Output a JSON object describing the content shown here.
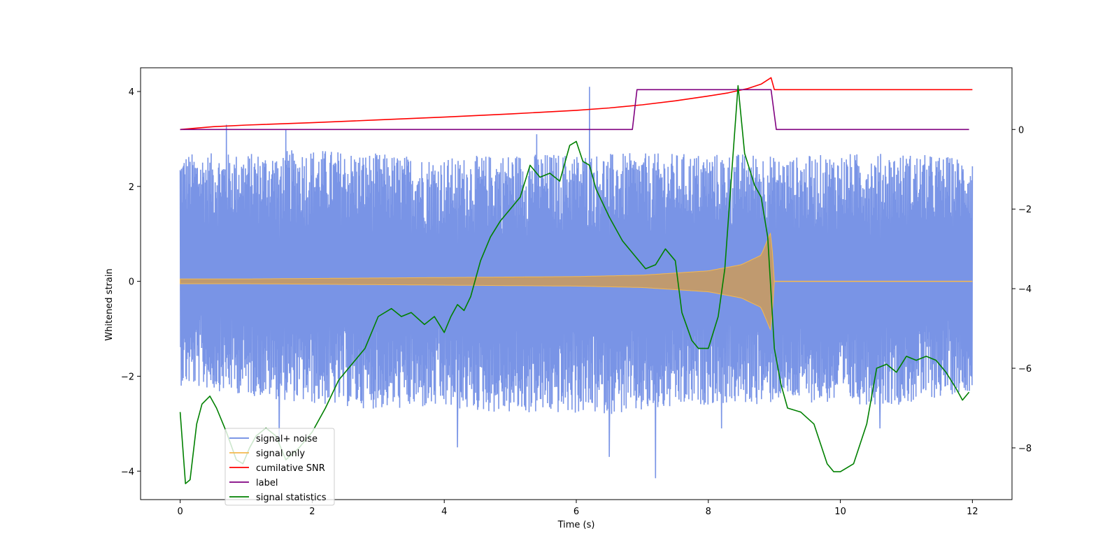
{
  "chart_data": {
    "type": "line",
    "title": "",
    "xlabel": "Time (s)",
    "ylabel": "Whitened strain",
    "y2label": "",
    "xlim": [
      -0.6,
      12.6
    ],
    "ylim": [
      -4.6,
      4.5
    ],
    "y2lim": [
      -9.3,
      1.55
    ],
    "xticks": [
      0,
      2,
      4,
      6,
      8,
      10,
      12
    ],
    "yticks": [
      -4,
      -2,
      0,
      2,
      4
    ],
    "y2ticks": [
      -8,
      -6,
      -4,
      -2,
      0
    ],
    "legend_position": "lower-left",
    "grid": false,
    "series": [
      {
        "name": "signal+ noise",
        "axis": "left",
        "color": "#6a88e3",
        "envelope_x": [
          0,
          1,
          2,
          3,
          4,
          5,
          6,
          7,
          8,
          8.95,
          9.0,
          10,
          11,
          12
        ],
        "envelope_upper": [
          2.7,
          2.7,
          2.8,
          2.7,
          2.6,
          2.7,
          2.7,
          2.7,
          2.7,
          2.7,
          2.6,
          2.7,
          2.7,
          2.6
        ],
        "envelope_lower": [
          -2.2,
          -2.4,
          -2.6,
          -2.7,
          -2.7,
          -2.8,
          -2.8,
          -2.8,
          -2.6,
          -2.6,
          -2.5,
          -2.6,
          -2.6,
          -2.3
        ],
        "spikes": [
          [
            0.7,
            3.3
          ],
          [
            1.6,
            3.2
          ],
          [
            6.2,
            4.1
          ],
          [
            7.2,
            -4.15
          ],
          [
            5.4,
            3.1
          ],
          [
            4.2,
            -3.5
          ],
          [
            6.5,
            -3.7
          ],
          [
            8.2,
            -3.1
          ],
          [
            10.6,
            -3.1
          ],
          [
            1.5,
            -3.4
          ]
        ]
      },
      {
        "name": "signal only",
        "axis": "left",
        "color": "#f5b94f",
        "x": [
          0,
          1,
          2,
          3,
          4,
          5,
          6,
          7,
          8,
          8.5,
          8.8,
          8.95,
          9.0,
          10,
          11,
          12
        ],
        "amplitude": [
          0.05,
          0.05,
          0.06,
          0.07,
          0.08,
          0.09,
          0.1,
          0.13,
          0.22,
          0.35,
          0.55,
          1.05,
          0.0,
          0.0,
          0.0,
          0.0
        ]
      },
      {
        "name": "cumilative SNR",
        "axis": "right",
        "color": "#ff0000",
        "x": [
          0,
          0.5,
          1,
          2,
          3,
          4,
          5,
          6,
          6.5,
          7,
          7.5,
          8,
          8.3,
          8.6,
          8.8,
          8.95,
          9.0,
          10,
          11,
          12
        ],
        "y": [
          0.0,
          0.07,
          0.11,
          0.17,
          0.24,
          0.31,
          0.39,
          0.48,
          0.54,
          0.62,
          0.72,
          0.84,
          0.92,
          1.03,
          1.14,
          1.3,
          1.0,
          1.0,
          1.0,
          1.0
        ]
      },
      {
        "name": "label",
        "axis": "right",
        "color": "#800080",
        "x": [
          0,
          6.85,
          6.92,
          8.95,
          9.03,
          11.95
        ],
        "y": [
          0,
          0,
          1,
          1,
          0,
          0
        ]
      },
      {
        "name": "signal statistics",
        "axis": "right",
        "color": "#008000",
        "x": [
          0,
          0.08,
          0.15,
          0.25,
          0.33,
          0.45,
          0.55,
          0.7,
          0.85,
          0.95,
          1.05,
          1.15,
          1.3,
          1.45,
          1.6,
          1.8,
          2.0,
          2.2,
          2.4,
          2.6,
          2.8,
          3.0,
          3.2,
          3.35,
          3.5,
          3.7,
          3.85,
          4.0,
          4.1,
          4.2,
          4.3,
          4.4,
          4.55,
          4.7,
          4.85,
          5.0,
          5.15,
          5.3,
          5.45,
          5.6,
          5.75,
          5.9,
          6.0,
          6.1,
          6.2,
          6.3,
          6.5,
          6.7,
          6.9,
          7.05,
          7.2,
          7.35,
          7.5,
          7.6,
          7.75,
          7.85,
          8.0,
          8.15,
          8.25,
          8.35,
          8.45,
          8.55,
          8.7,
          8.8,
          8.9,
          9.0,
          9.1,
          9.2,
          9.4,
          9.6,
          9.8,
          9.9,
          10.0,
          10.1,
          10.2,
          10.4,
          10.55,
          10.7,
          10.85,
          11.0,
          11.15,
          11.3,
          11.45,
          11.6,
          11.75,
          11.85,
          11.95
        ],
        "y": [
          -7.1,
          -8.9,
          -8.8,
          -7.4,
          -6.9,
          -6.7,
          -7.0,
          -7.6,
          -8.3,
          -8.4,
          -8.0,
          -7.7,
          -7.5,
          -7.7,
          -8.3,
          -8.0,
          -7.6,
          -7.0,
          -6.3,
          -5.9,
          -5.5,
          -4.7,
          -4.5,
          -4.7,
          -4.6,
          -4.9,
          -4.7,
          -5.1,
          -4.7,
          -4.4,
          -4.55,
          -4.2,
          -3.3,
          -2.7,
          -2.3,
          -2.0,
          -1.7,
          -0.9,
          -1.2,
          -1.1,
          -1.3,
          -0.4,
          -0.3,
          -0.8,
          -0.9,
          -1.5,
          -2.2,
          -2.8,
          -3.2,
          -3.5,
          -3.4,
          -3.0,
          -3.3,
          -4.6,
          -5.3,
          -5.5,
          -5.5,
          -4.7,
          -3.5,
          -1.2,
          1.1,
          -0.6,
          -1.4,
          -1.7,
          -2.7,
          -5.5,
          -6.4,
          -7.0,
          -7.1,
          -7.4,
          -8.4,
          -8.6,
          -8.6,
          -8.5,
          -8.4,
          -7.4,
          -6.0,
          -5.9,
          -6.1,
          -5.7,
          -5.8,
          -5.7,
          -5.8,
          -6.1,
          -6.5,
          -6.8,
          -6.6
        ]
      }
    ]
  }
}
